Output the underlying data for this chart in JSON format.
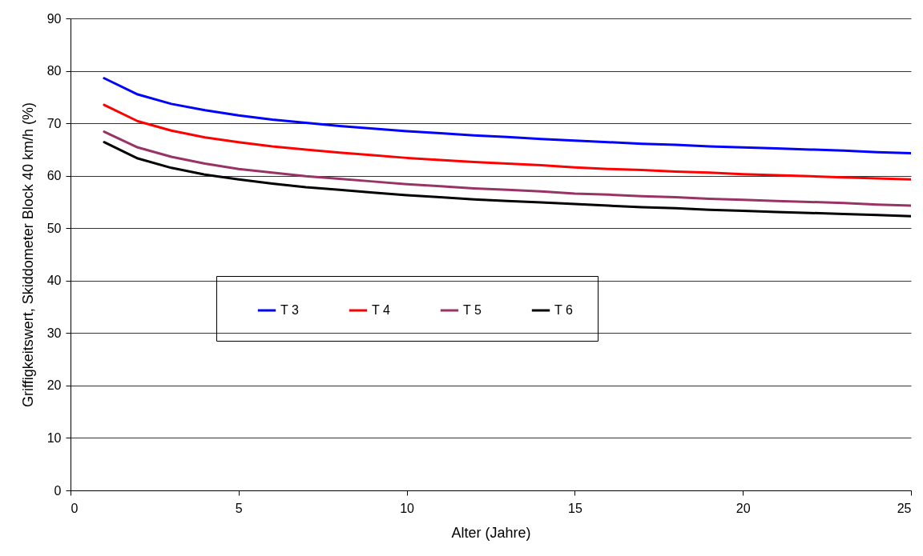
{
  "chart_data": {
    "type": "line",
    "xlabel": "Alter (Jahre)",
    "ylabel": "Griffigkeitswert, Skiddometer Block 40 km/h (%)",
    "x": [
      1,
      2,
      3,
      4,
      5,
      6,
      7,
      8,
      9,
      10,
      11,
      12,
      13,
      14,
      15,
      16,
      17,
      18,
      19,
      20,
      21,
      22,
      23,
      24,
      25
    ],
    "series": [
      {
        "name": "T 3",
        "color": "#0000ff",
        "values": [
          78.6,
          75.5,
          73.7,
          72.5,
          71.5,
          70.7,
          70.1,
          69.5,
          69.0,
          68.5,
          68.1,
          67.7,
          67.4,
          67.0,
          66.7,
          66.4,
          66.1,
          65.9,
          65.6,
          65.4,
          65.2,
          65.0,
          64.8,
          64.5,
          64.3
        ]
      },
      {
        "name": "T 4",
        "color": "#ff0000",
        "values": [
          73.5,
          70.4,
          68.6,
          67.3,
          66.4,
          65.6,
          65.0,
          64.4,
          63.9,
          63.4,
          63.0,
          62.6,
          62.3,
          62.0,
          61.6,
          61.3,
          61.1,
          60.8,
          60.6,
          60.3,
          60.1,
          59.9,
          59.7,
          59.5,
          59.3
        ]
      },
      {
        "name": "T 5",
        "color": "#993366",
        "values": [
          68.4,
          65.4,
          63.6,
          62.3,
          61.3,
          60.6,
          59.9,
          59.4,
          58.9,
          58.4,
          58.0,
          57.6,
          57.3,
          57.0,
          56.6,
          56.4,
          56.1,
          55.9,
          55.6,
          55.4,
          55.2,
          55.0,
          54.8,
          54.5,
          54.3
        ]
      },
      {
        "name": "T 6",
        "color": "#000000",
        "values": [
          66.4,
          63.3,
          61.5,
          60.2,
          59.3,
          58.5,
          57.8,
          57.3,
          56.8,
          56.3,
          55.9,
          55.5,
          55.2,
          54.9,
          54.6,
          54.3,
          54.0,
          53.8,
          53.5,
          53.3,
          53.1,
          52.9,
          52.7,
          52.5,
          52.3
        ]
      }
    ],
    "xlim": [
      0,
      25
    ],
    "xticks": [
      0,
      5,
      10,
      15,
      20,
      25
    ],
    "ylim": [
      0,
      90
    ],
    "yticks": [
      0,
      10,
      20,
      30,
      40,
      50,
      60,
      70,
      80,
      90
    ],
    "grid": "y",
    "legend": "center",
    "marker": "none",
    "line_style": "solid"
  }
}
